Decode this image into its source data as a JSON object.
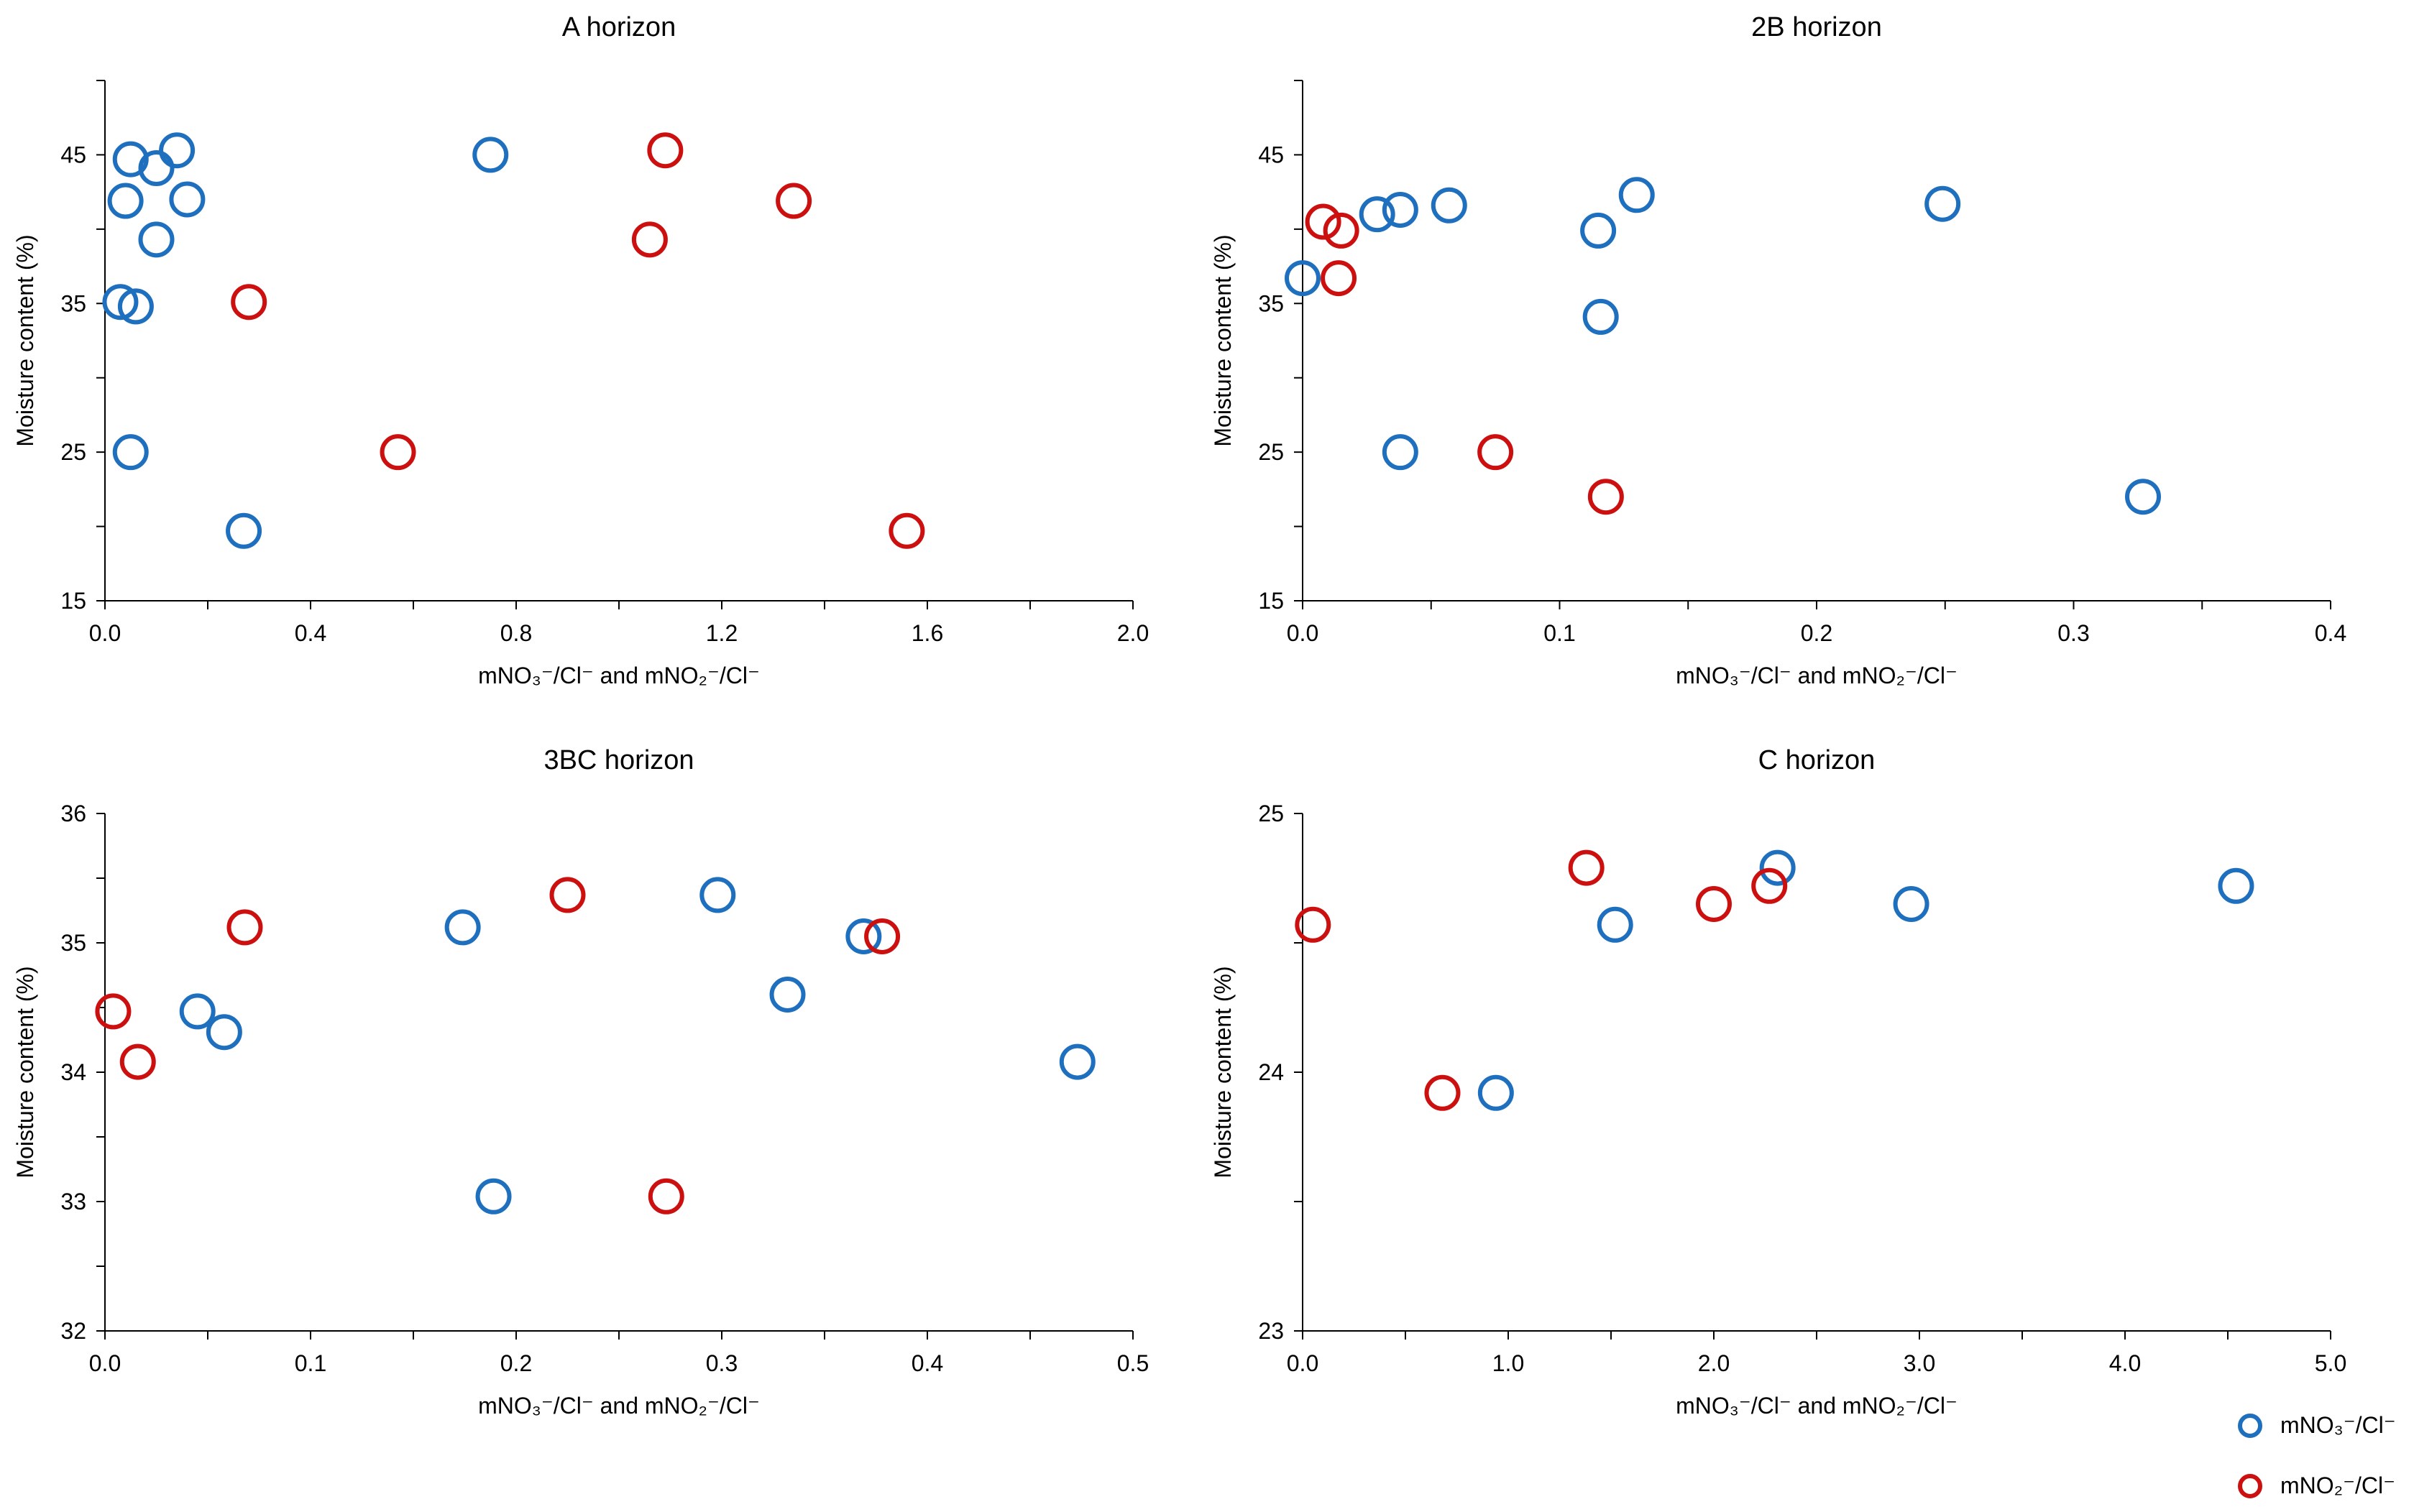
{
  "chart_data": [
    {
      "type": "scatter",
      "title": "A horizon",
      "xlabel": "mNO₃⁻/Cl⁻ and mNO₂⁻/Cl⁻",
      "ylabel": "Moisture content (%)",
      "xlim": [
        0,
        2.0
      ],
      "ylim": [
        15,
        50
      ],
      "xticks": [
        "0.0",
        "0.4",
        "0.8",
        "1.2",
        "1.6",
        "2.0"
      ],
      "yticks": [
        "15",
        "25",
        "35",
        "45"
      ],
      "series": [
        {
          "name": "mNO₃⁻/Cl⁻",
          "points": [
            [
              0.05,
              44.7
            ],
            [
              0.14,
              45.3
            ],
            [
              0.1,
              44.1
            ],
            [
              0.04,
              41.9
            ],
            [
              0.16,
              42.0
            ],
            [
              0.1,
              39.3
            ],
            [
              0.03,
              35.1
            ],
            [
              0.06,
              34.8
            ],
            [
              0.05,
              25.0
            ],
            [
              0.27,
              19.7
            ],
            [
              0.75,
              45.0
            ]
          ]
        },
        {
          "name": "mNO₂⁻/Cl⁻",
          "points": [
            [
              1.09,
              45.3
            ],
            [
              1.34,
              41.9
            ],
            [
              1.06,
              39.3
            ],
            [
              0.28,
              35.1
            ],
            [
              0.57,
              25.0
            ],
            [
              1.56,
              19.7
            ]
          ]
        }
      ]
    },
    {
      "type": "scatter",
      "title": "2B horizon",
      "xlabel": "mNO₃⁻/Cl⁻ and mNO₂⁻/Cl⁻",
      "ylabel": "Moisture content (%)",
      "xlim": [
        0,
        0.4
      ],
      "ylim": [
        15,
        50
      ],
      "xticks": [
        "0.0",
        "0.1",
        "0.2",
        "0.3",
        "0.4"
      ],
      "yticks": [
        "15",
        "25",
        "35",
        "45"
      ],
      "series": [
        {
          "name": "mNO₃⁻/Cl⁻",
          "points": [
            [
              0.0,
              36.7
            ],
            [
              0.029,
              41.0
            ],
            [
              0.038,
              41.3
            ],
            [
              0.057,
              41.6
            ],
            [
              0.115,
              39.9
            ],
            [
              0.13,
              42.3
            ],
            [
              0.116,
              34.1
            ],
            [
              0.038,
              25.0
            ],
            [
              0.249,
              41.7
            ],
            [
              0.327,
              22.0
            ]
          ]
        },
        {
          "name": "mNO₂⁻/Cl⁻",
          "points": [
            [
              0.008,
              40.5
            ],
            [
              0.015,
              39.9
            ],
            [
              0.014,
              36.7
            ],
            [
              0.075,
              25.0
            ],
            [
              0.118,
              22.0
            ]
          ]
        }
      ]
    },
    {
      "type": "scatter",
      "title": "3BC horizon",
      "xlabel": "mNO₃⁻/Cl⁻ and mNO₂⁻/Cl⁻",
      "ylabel": "Moisture content (%)",
      "xlim": [
        0,
        0.5
      ],
      "ylim": [
        32,
        36
      ],
      "xticks": [
        "0.0",
        "0.1",
        "0.2",
        "0.3",
        "0.4",
        "0.5"
      ],
      "yticks": [
        "32",
        "33",
        "34",
        "35",
        "36"
      ],
      "series": [
        {
          "name": "mNO₃⁻/Cl⁻",
          "points": [
            [
              0.045,
              34.47
            ],
            [
              0.058,
              34.31
            ],
            [
              0.174,
              35.12
            ],
            [
              0.298,
              35.37
            ],
            [
              0.369,
              35.05
            ],
            [
              0.332,
              34.6
            ],
            [
              0.189,
              33.04
            ],
            [
              0.473,
              34.08
            ]
          ]
        },
        {
          "name": "mNO₂⁻/Cl⁻",
          "points": [
            [
              0.004,
              34.47
            ],
            [
              0.016,
              34.08
            ],
            [
              0.068,
              35.12
            ],
            [
              0.225,
              35.37
            ],
            [
              0.378,
              35.05
            ],
            [
              0.273,
              33.04
            ]
          ]
        }
      ]
    },
    {
      "type": "scatter",
      "title": "C horizon",
      "xlabel": "mNO₃⁻/Cl⁻ and mNO₂⁻/Cl⁻",
      "ylabel": "Moisture content (%)",
      "xlim": [
        0,
        5.0
      ],
      "ylim": [
        23,
        25
      ],
      "xticks": [
        "0.0",
        "1.0",
        "2.0",
        "3.0",
        "4.0",
        "5.0"
      ],
      "yticks": [
        "23",
        "24",
        "25"
      ],
      "series": [
        {
          "name": "mNO₃⁻/Cl⁻",
          "points": [
            [
              1.52,
              24.57
            ],
            [
              2.31,
              24.79
            ],
            [
              2.96,
              24.65
            ],
            [
              4.54,
              24.72
            ],
            [
              0.94,
              23.92
            ]
          ]
        },
        {
          "name": "mNO₂⁻/Cl⁻",
          "points": [
            [
              0.05,
              24.57
            ],
            [
              1.38,
              24.79
            ],
            [
              2.0,
              24.65
            ],
            [
              2.27,
              24.72
            ],
            [
              0.68,
              23.92
            ]
          ]
        }
      ]
    }
  ],
  "legend": {
    "placement": "bottom-right",
    "items": [
      {
        "label": "mNO₃⁻/Cl⁻",
        "color": "#1f6fbf"
      },
      {
        "label": "mNO₂⁻/Cl⁻",
        "color": "#cc1010"
      }
    ]
  },
  "colors": {
    "nitrate": "#1f6fbf",
    "nitrite": "#cc1010",
    "axis": "#000000"
  }
}
